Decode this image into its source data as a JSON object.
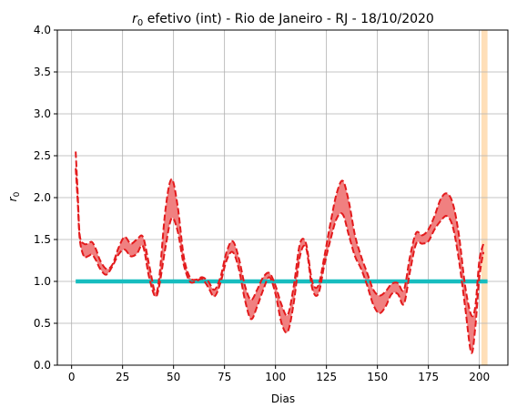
{
  "chart_data": {
    "type": "line",
    "title": "r₀ efetivo (int) - Rio de Janeiro - RJ - 18/10/2020",
    "title_parts": {
      "symbol": "r",
      "subscript": "0",
      "rest": " efetivo (int) - Rio de Janeiro - RJ - 18/10/2020"
    },
    "xlabel": "Dias",
    "ylabel_parts": {
      "symbol": "r",
      "subscript": "0"
    },
    "xlim": [
      -7,
      214
    ],
    "ylim": [
      0,
      4
    ],
    "x_ticks": [
      0,
      25,
      50,
      75,
      100,
      125,
      150,
      175,
      200
    ],
    "y_ticks": [
      0.0,
      0.5,
      1.0,
      1.5,
      2.0,
      2.5,
      3.0,
      3.5,
      4.0
    ],
    "x_tick_labels": [
      "0",
      "25",
      "50",
      "75",
      "100",
      "125",
      "150",
      "175",
      "200"
    ],
    "y_tick_labels": [
      "0.0",
      "0.5",
      "1.0",
      "1.5",
      "2.0",
      "2.5",
      "3.0",
      "3.5",
      "4.0"
    ],
    "grid": true,
    "highlight_span": {
      "x": [
        201,
        204
      ],
      "color": "#ffdfb8"
    },
    "reference_line": {
      "y": 1.0,
      "x": [
        2,
        204
      ],
      "color": "#17bdbf"
    },
    "band": {
      "x": [
        2,
        3,
        4,
        6,
        8,
        10,
        12,
        14,
        17,
        20,
        23,
        26,
        29,
        32,
        35,
        38,
        41,
        43,
        46,
        49,
        52,
        55,
        58,
        61,
        64,
        67,
        70,
        73,
        76,
        79,
        82,
        85,
        88,
        91,
        94,
        97,
        100,
        103,
        106,
        109,
        112,
        115,
        118,
        121,
        124,
        127,
        130,
        133,
        136,
        139,
        142,
        145,
        148,
        151,
        154,
        157,
        160,
        163,
        166,
        169,
        172,
        175,
        178,
        181,
        184,
        187,
        190,
        193,
        196,
        198,
        200,
        202
      ],
      "upper": [
        2.55,
        2.05,
        1.55,
        1.45,
        1.45,
        1.47,
        1.38,
        1.25,
        1.15,
        1.2,
        1.4,
        1.53,
        1.45,
        1.5,
        1.53,
        1.2,
        0.87,
        1.05,
        1.85,
        2.22,
        1.9,
        1.3,
        1.05,
        1.02,
        1.05,
        1.0,
        0.9,
        1.05,
        1.35,
        1.48,
        1.28,
        0.95,
        0.78,
        0.9,
        1.05,
        1.1,
        0.95,
        0.72,
        0.6,
        0.95,
        1.45,
        1.45,
        1.0,
        0.95,
        1.3,
        1.7,
        2.05,
        2.2,
        1.95,
        1.55,
        1.3,
        1.1,
        0.9,
        0.83,
        0.88,
        0.97,
        0.98,
        0.9,
        1.3,
        1.58,
        1.55,
        1.62,
        1.78,
        1.98,
        2.05,
        1.93,
        1.55,
        0.95,
        0.6,
        0.7,
        1.25,
        1.45
      ],
      "lower": [
        2.35,
        1.95,
        1.5,
        1.3,
        1.3,
        1.32,
        1.25,
        1.15,
        1.08,
        1.18,
        1.32,
        1.38,
        1.3,
        1.33,
        1.42,
        1.05,
        0.82,
        0.95,
        1.4,
        1.75,
        1.6,
        1.2,
        1.0,
        1.0,
        1.03,
        0.93,
        0.82,
        0.98,
        1.25,
        1.35,
        1.15,
        0.78,
        0.55,
        0.7,
        0.9,
        1.05,
        0.85,
        0.5,
        0.4,
        0.75,
        1.3,
        1.4,
        0.92,
        0.85,
        1.2,
        1.5,
        1.75,
        1.8,
        1.55,
        1.3,
        1.15,
        0.95,
        0.72,
        0.62,
        0.7,
        0.85,
        0.85,
        0.73,
        1.12,
        1.45,
        1.45,
        1.48,
        1.62,
        1.72,
        1.78,
        1.65,
        1.25,
        0.7,
        0.15,
        0.45,
        1.05,
        1.35
      ]
    },
    "colors": {
      "band_fill": "#f08080",
      "band_edge": "#e31a1c"
    }
  }
}
